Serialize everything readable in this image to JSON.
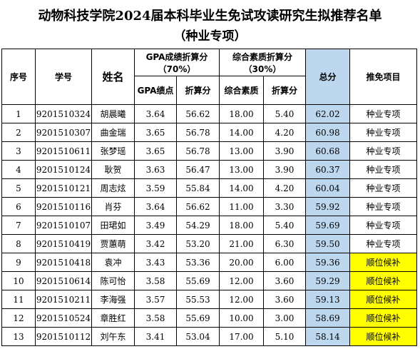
{
  "title": "动物科技学院2024届本科毕业生免试攻读研究生拟推荐名单",
  "subtitle": "（种业专项）",
  "headers": {
    "seq": "序号",
    "student_id": "学号",
    "name": "姓名",
    "gpa_group_line1": "GPA成绩折算分",
    "gpa_group_line2": "（70%）",
    "gpa_points": "GPA绩点",
    "gpa_score": "折算分",
    "comp_group_line1": "综合素质折算分",
    "comp_group_line2": "（30%）",
    "comp_quality": "综合素质",
    "comp_score": "折算分",
    "total": "总分",
    "project": "推免项目"
  },
  "colors": {
    "total_bg": "#bdd7ee",
    "alternate_bg": "#ffff00"
  },
  "rows": [
    {
      "seq": "1",
      "id": "9201510324",
      "name": "胡晨曦",
      "gpa": "3.64",
      "gpa_score": "56.62",
      "comp": "18.00",
      "comp_score": "5.40",
      "total": "62.02",
      "project": "种业专项",
      "highlight": false
    },
    {
      "seq": "2",
      "id": "9201510307",
      "name": "曲金瑞",
      "gpa": "3.65",
      "gpa_score": "56.78",
      "comp": "14.00",
      "comp_score": "4.20",
      "total": "60.98",
      "project": "种业专项",
      "highlight": false
    },
    {
      "seq": "3",
      "id": "9201510611",
      "name": "张梦瑶",
      "gpa": "3.65",
      "gpa_score": "56.78",
      "comp": "13.00",
      "comp_score": "3.90",
      "total": "60.68",
      "project": "种业专项",
      "highlight": false
    },
    {
      "seq": "4",
      "id": "9201510124",
      "name": "耿贺",
      "gpa": "3.63",
      "gpa_score": "56.47",
      "comp": "13.00",
      "comp_score": "3.90",
      "total": "60.37",
      "project": "种业专项",
      "highlight": false
    },
    {
      "seq": "5",
      "id": "9201510121",
      "name": "周志炫",
      "gpa": "3.59",
      "gpa_score": "55.84",
      "comp": "14.00",
      "comp_score": "4.20",
      "total": "60.04",
      "project": "种业专项",
      "highlight": false
    },
    {
      "seq": "6",
      "id": "9201510116",
      "name": "肖芬",
      "gpa": "3.64",
      "gpa_score": "56.62",
      "comp": "11.00",
      "comp_score": "3.30",
      "total": "59.92",
      "project": "种业专项",
      "highlight": false
    },
    {
      "seq": "7",
      "id": "9201510107",
      "name": "田珺如",
      "gpa": "3.49",
      "gpa_score": "54.29",
      "comp": "18.00",
      "comp_score": "5.40",
      "total": "59.69",
      "project": "种业专项",
      "highlight": false
    },
    {
      "seq": "8",
      "id": "9201510419",
      "name": "贾蕙萌",
      "gpa": "3.42",
      "gpa_score": "53.20",
      "comp": "21.00",
      "comp_score": "6.30",
      "total": "59.50",
      "project": "种业专项",
      "highlight": false
    },
    {
      "seq": "9",
      "id": "9201510418",
      "name": "袁冲",
      "gpa": "3.43",
      "gpa_score": "53.36",
      "comp": "20.00",
      "comp_score": "6.00",
      "total": "59.36",
      "project": "顺位候补",
      "highlight": true
    },
    {
      "seq": "10",
      "id": "9201510614",
      "name": "陈可怡",
      "gpa": "3.58",
      "gpa_score": "55.69",
      "comp": "12.00",
      "comp_score": "3.60",
      "total": "59.29",
      "project": "顺位候补",
      "highlight": true
    },
    {
      "seq": "11",
      "id": "9201510211",
      "name": "李海强",
      "gpa": "3.57",
      "gpa_score": "55.53",
      "comp": "12.00",
      "comp_score": "3.60",
      "total": "59.13",
      "project": "顺位候补",
      "highlight": true
    },
    {
      "seq": "12",
      "id": "9201510524",
      "name": "章胜红",
      "gpa": "3.58",
      "gpa_score": "55.69",
      "comp": "10.00",
      "comp_score": "3.00",
      "total": "58.69",
      "project": "顺位候补",
      "highlight": true
    },
    {
      "seq": "13",
      "id": "9201510112",
      "name": "刘午东",
      "gpa": "3.41",
      "gpa_score": "53.04",
      "comp": "17.00",
      "comp_score": "5.10",
      "total": "58.14",
      "project": "顺位候补",
      "highlight": true
    }
  ]
}
